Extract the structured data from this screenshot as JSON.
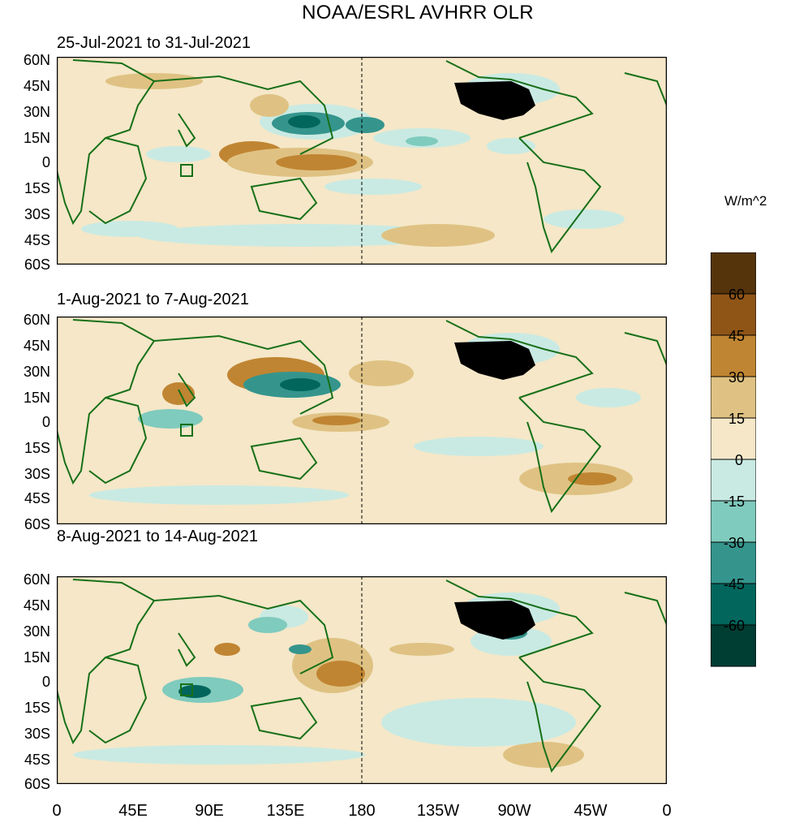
{
  "title": "NOAA/ESRL AVHRR OLR",
  "panels": [
    {
      "label": "25-Jul-2021 to 31-Jul-2021"
    },
    {
      "label": "1-Aug-2021 to 7-Aug-2021"
    },
    {
      "label": "8-Aug-2021 to 14-Aug-2021"
    }
  ],
  "lat_labels": [
    "60N",
    "45N",
    "30N",
    "15N",
    "0",
    "15S",
    "30S",
    "45S",
    "60S"
  ],
  "lon_labels": [
    "0",
    "45E",
    "90E",
    "135E",
    "180",
    "135W",
    "90W",
    "45W",
    "0"
  ],
  "colorbar": {
    "unit": "W/m^2",
    "labels": [
      "60",
      "45",
      "30",
      "15",
      "0",
      "-15",
      "-30",
      "-45",
      "-60"
    ],
    "colors": [
      "#55340c",
      "#8f5517",
      "#c08532",
      "#dfc283",
      "#f5e7c8",
      "#c9eae3",
      "#7fcbbd",
      "#35958d",
      "#02665d",
      "#003d33"
    ]
  },
  "colors": {
    "land_outline": "#187018",
    "background": "#f5e7c8"
  }
}
